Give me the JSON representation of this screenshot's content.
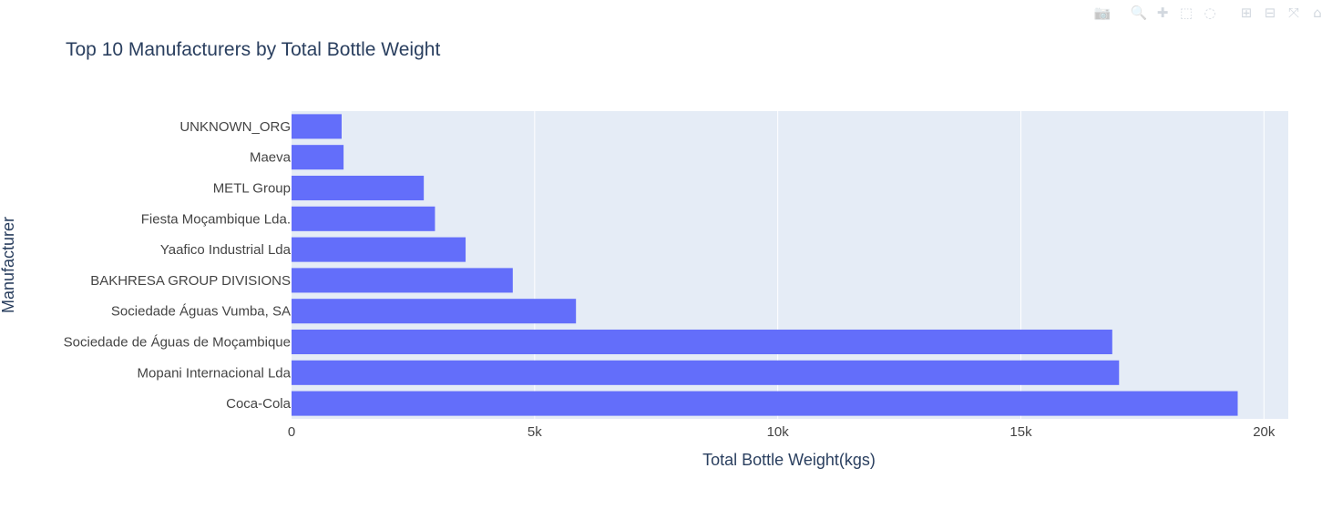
{
  "modebar": {
    "buttons": [
      {
        "icon": "camera-icon",
        "glyph": "📷"
      },
      {
        "icon": "zoom-icon",
        "glyph": "🔍"
      },
      {
        "icon": "pan-icon",
        "glyph": "✚"
      },
      {
        "icon": "box-select-icon",
        "glyph": "⬚"
      },
      {
        "icon": "lasso-select-icon",
        "glyph": "◌"
      },
      {
        "icon": "zoom-in-icon",
        "glyph": "⊞"
      },
      {
        "icon": "zoom-out-icon",
        "glyph": "⊟"
      },
      {
        "icon": "autoscale-icon",
        "glyph": "⤧"
      },
      {
        "icon": "reset-axes-icon",
        "glyph": "⌂"
      }
    ]
  },
  "colors": {
    "bar": "#636efa",
    "plot_bg": "#e5ecf6",
    "grid": "#ffffff",
    "text": "#2a3f5f",
    "tick_text": "#444444"
  },
  "chart_data": {
    "type": "bar",
    "orientation": "horizontal",
    "title": "Top 10 Manufacturers by Total Bottle Weight",
    "xlabel": "Total Bottle Weight(kgs)",
    "ylabel": "Manufacturer",
    "xlim": [
      0,
      20500
    ],
    "x_ticks": [
      0,
      5000,
      10000,
      15000,
      20000
    ],
    "x_tick_labels": [
      "0",
      "5k",
      "10k",
      "15k",
      "20k"
    ],
    "grid": true,
    "categories": [
      "UNKNOWN_ORG",
      "Maeva",
      "METL Group",
      "Fiesta Moçambique Lda.",
      "Yaafico Industrial Lda",
      "BAKHRESA GROUP DIVISIONS",
      "Sociedade Águas Vumba, SA",
      "Sociedade de Águas de Moçambique",
      "Mopani Internacional Lda",
      "Coca-Cola"
    ],
    "values": [
      1030,
      1070,
      2720,
      2950,
      3580,
      4550,
      5850,
      16880,
      17020,
      19460
    ]
  }
}
